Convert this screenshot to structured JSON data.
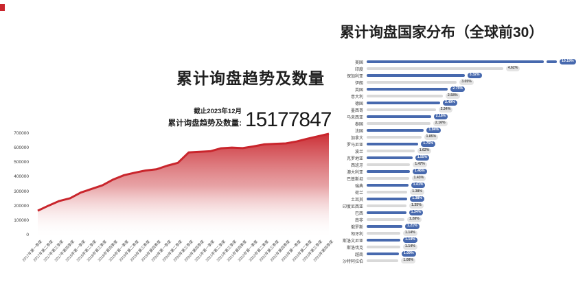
{
  "colors": {
    "area_red": "#c9252c",
    "bar_blue": "#4769ae",
    "bar_gray": "#d9d9d9"
  },
  "left_panel": {
    "title": "累计询盘趋势及数量",
    "asof_label": "截止2023年12月",
    "total_label": "累计询盘趋势及数量:",
    "total_value": "15177847"
  },
  "right_panel": {
    "title": "累计询盘国家分布（全球前30）"
  },
  "chart_data": [
    {
      "type": "area",
      "title": "累计询盘趋势及数量",
      "xlabel": "",
      "ylabel": "",
      "ylim": [
        0,
        700000
      ],
      "yticks": [
        "0",
        "100000",
        "200000",
        "300000",
        "400000",
        "500000",
        "600000",
        "700000"
      ],
      "grid": false,
      "legend": "none",
      "categories": [
        "2017年第一季度",
        "2017年第二季度",
        "2017年第三季度",
        "2017年第四季度",
        "2018年第一季度",
        "2018年第二季度",
        "2018年第三季度",
        "2018年第四季度",
        "2019年第一季度",
        "2019年第二季度",
        "2019年第三季度",
        "2019年第四季度",
        "2020年第一季度",
        "2020年第二季度",
        "2020年第三季度",
        "2020年第四季度",
        "2021年第一季度",
        "2021年第二季度",
        "2021年第三季度",
        "2021年第四季度",
        "2022年第一季度",
        "2022年第二季度",
        "2022年第三季度",
        "2022年第四季度",
        "2023年第一季度",
        "2023年第二季度",
        "2023年第三季度",
        "2023年第四季度"
      ],
      "values": [
        170000,
        205000,
        237000,
        256000,
        295000,
        320000,
        345000,
        385000,
        415000,
        432000,
        447000,
        455000,
        480000,
        500000,
        572000,
        576000,
        580000,
        600000,
        605000,
        601000,
        613000,
        627000,
        631000,
        634000,
        647000,
        666000,
        683000,
        700000
      ]
    },
    {
      "type": "bar",
      "orientation": "horizontal",
      "title": "累计询盘国家分布（全球前30）",
      "legend": "none",
      "broken_bar_index": 0,
      "categories": [
        "美国",
        "印度",
        "保加利亚",
        "伊朗",
        "英国",
        "意大利",
        "德国",
        "墨西哥",
        "马来西亚",
        "泰国",
        "法国",
        "加拿大",
        "罗马尼亚",
        "波兰",
        "克罗地亚",
        "西班牙",
        "澳大利亚",
        "巴基斯坦",
        "瑞典",
        "荷兰",
        "土耳其",
        "印度尼西亚",
        "巴西",
        "南非",
        "俄罗斯",
        "匈牙利",
        "斯洛文尼亚",
        "斯洛伐克",
        "越南",
        "沙特阿拉伯"
      ],
      "values": [
        10.19,
        4.62,
        3.32,
        3.05,
        2.75,
        2.58,
        2.49,
        2.34,
        2.18,
        2.16,
        1.94,
        1.85,
        1.75,
        1.62,
        1.55,
        1.47,
        1.46,
        1.43,
        1.41,
        1.38,
        1.38,
        1.35,
        1.34,
        1.28,
        1.21,
        1.14,
        1.14,
        1.14,
        1.09,
        1.08
      ],
      "labels": [
        "10.19%",
        "4.62%",
        "3.32%",
        "3.05%",
        "2.75%",
        "2.58%",
        "2.49%",
        "2.34%",
        "2.18%",
        "2.16%",
        "1.94%",
        "1.85%",
        "1.75%",
        "1.62%",
        "1.55%",
        "1.47%",
        "1.46%",
        "1.43%",
        "1.41%",
        "1.38%",
        "1.38%",
        "1.35%",
        "1.34%",
        "1.28%",
        "1.21%",
        "1.14%",
        "1.14%",
        "1.14%",
        "1.09%",
        "1.08%"
      ]
    }
  ]
}
